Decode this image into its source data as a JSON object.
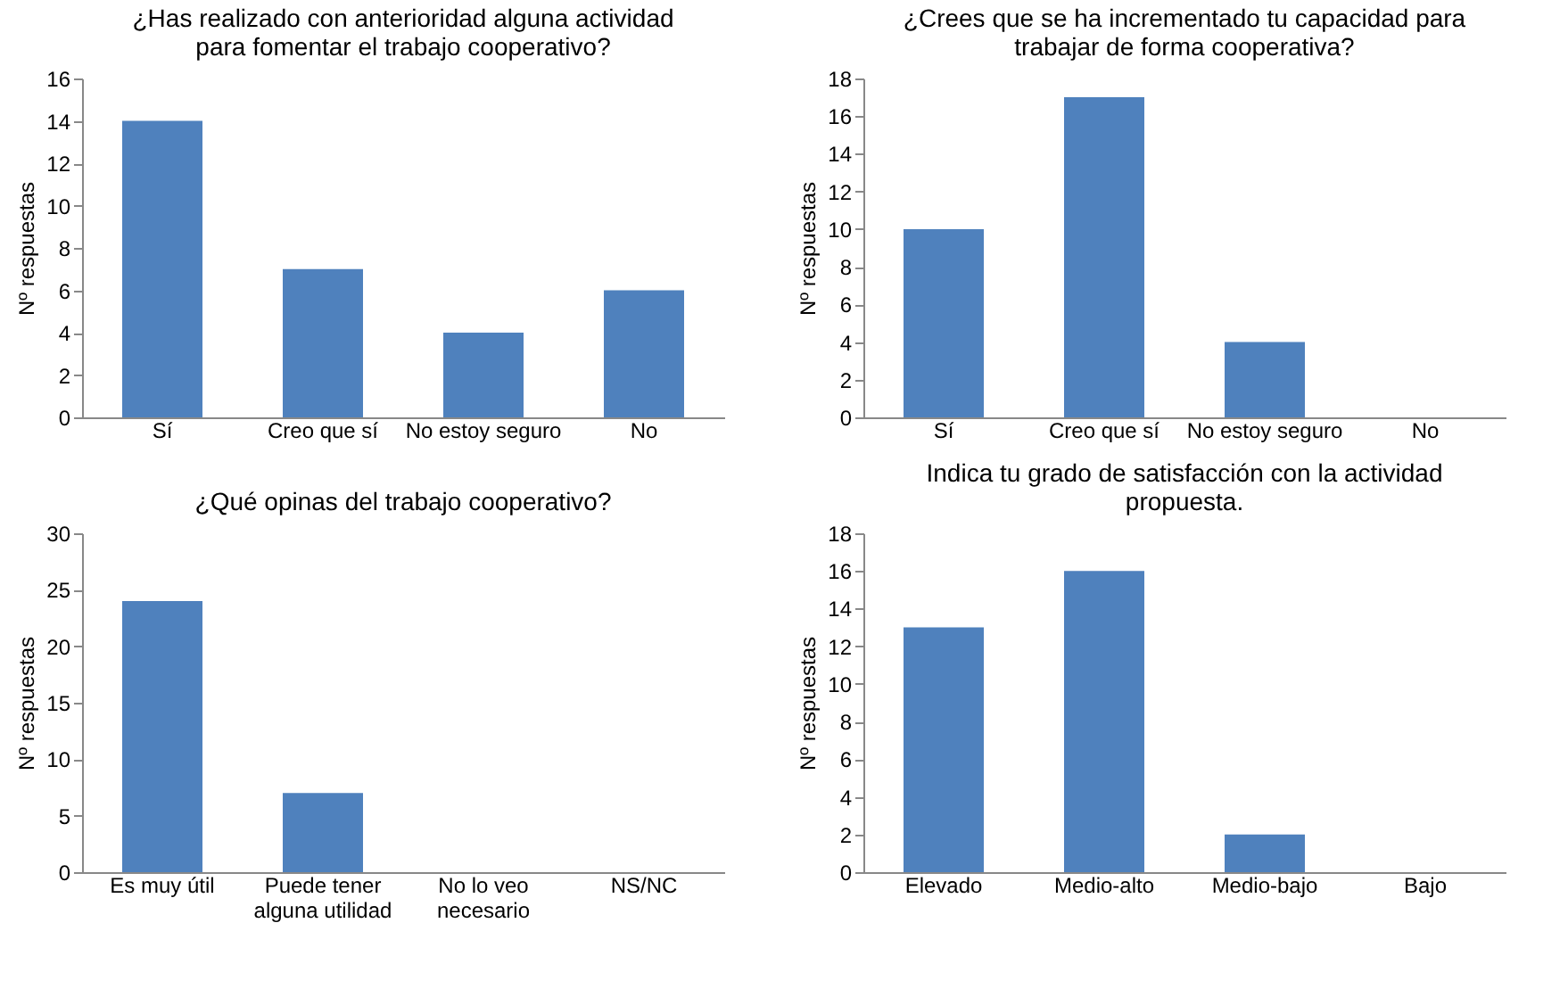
{
  "chart_data": [
    {
      "type": "bar",
      "title": "¿Has realizado con anterioridad alguna actividad para fomentar el trabajo cooperativo?",
      "ylabel": "Nº respuestas",
      "categories": [
        "Sí",
        "Creo que sí",
        "No estoy seguro",
        "No"
      ],
      "values": [
        14,
        7,
        4,
        6
      ],
      "color": "#4f81bd",
      "ylim": [
        0,
        16
      ],
      "yticks": [
        0,
        2,
        4,
        6,
        8,
        10,
        12,
        14,
        16
      ],
      "grid": false
    },
    {
      "type": "bar",
      "title": "¿Crees que se ha incrementado tu capacidad para trabajar de forma cooperativa?",
      "ylabel": "Nº respuestas",
      "categories": [
        "Sí",
        "Creo que sí",
        "No estoy seguro",
        "No"
      ],
      "values": [
        10,
        17,
        4,
        0
      ],
      "color": "#4f81bd",
      "ylim": [
        0,
        18
      ],
      "yticks": [
        0,
        2,
        4,
        6,
        8,
        10,
        12,
        14,
        16,
        18
      ],
      "grid": false
    },
    {
      "type": "bar",
      "title": "¿Qué opinas del trabajo cooperativo?",
      "ylabel": "Nº respuestas",
      "categories": [
        "Es muy útil",
        "Puede tener alguna utilidad",
        "No lo veo necesario",
        "NS/NC"
      ],
      "values": [
        24,
        7,
        0,
        0
      ],
      "color": "#4f81bd",
      "ylim": [
        0,
        30
      ],
      "yticks": [
        0,
        5,
        10,
        15,
        20,
        25,
        30
      ],
      "grid": false
    },
    {
      "type": "bar",
      "title": "Indica tu grado de satisfacción con la actividad propuesta.",
      "ylabel": "Nº respuestas",
      "categories": [
        "Elevado",
        "Medio-alto",
        "Medio-bajo",
        "Bajo"
      ],
      "values": [
        13,
        16,
        2,
        0
      ],
      "color": "#4f81bd",
      "ylim": [
        0,
        18
      ],
      "yticks": [
        0,
        2,
        4,
        6,
        8,
        10,
        12,
        14,
        16,
        18
      ],
      "grid": false
    }
  ]
}
